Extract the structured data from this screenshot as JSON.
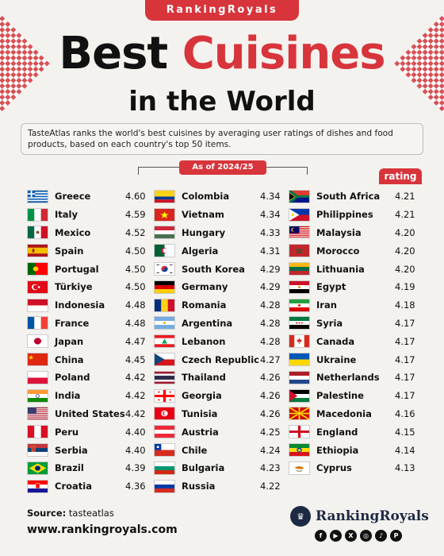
{
  "brand_tab": "RankingRoyals",
  "title": {
    "word1": "Best",
    "word2": "Cuisines",
    "line2": "in the World"
  },
  "description": "TasteAtlas ranks the world's best cuisines by averaging user ratings of dishes and food products, based on each country's top 50 items.",
  "as_of": "As of 2024/25",
  "rating_header": "rating",
  "columns": [
    [
      {
        "country": "Greece",
        "rating": "4.60",
        "flag": "greece"
      },
      {
        "country": "Italy",
        "rating": "4.59",
        "flag": "italy"
      },
      {
        "country": "Mexico",
        "rating": "4.52",
        "flag": "mexico"
      },
      {
        "country": "Spain",
        "rating": "4.50",
        "flag": "spain"
      },
      {
        "country": "Portugal",
        "rating": "4.50",
        "flag": "portugal"
      },
      {
        "country": "Türkiye",
        "rating": "4.50",
        "flag": "turkey"
      },
      {
        "country": "Indonesia",
        "rating": "4.48",
        "flag": "indonesia"
      },
      {
        "country": "France",
        "rating": "4.48",
        "flag": "france"
      },
      {
        "country": "Japan",
        "rating": "4.47",
        "flag": "japan"
      },
      {
        "country": "China",
        "rating": "4.45",
        "flag": "china"
      },
      {
        "country": "Poland",
        "rating": "4.42",
        "flag": "poland"
      },
      {
        "country": "India",
        "rating": "4.42",
        "flag": "india"
      },
      {
        "country": "United States",
        "rating": "4.42",
        "flag": "usa"
      },
      {
        "country": "Peru",
        "rating": "4.40",
        "flag": "peru"
      },
      {
        "country": "Serbia",
        "rating": "4.40",
        "flag": "serbia"
      },
      {
        "country": "Brazil",
        "rating": "4.39",
        "flag": "brazil"
      },
      {
        "country": "Croatia",
        "rating": "4.36",
        "flag": "croatia"
      }
    ],
    [
      {
        "country": "Colombia",
        "rating": "4.34",
        "flag": "colombia"
      },
      {
        "country": "Vietnam",
        "rating": "4.34",
        "flag": "vietnam"
      },
      {
        "country": "Hungary",
        "rating": "4.33",
        "flag": "hungary"
      },
      {
        "country": "Algeria",
        "rating": "4.31",
        "flag": "algeria"
      },
      {
        "country": "South Korea",
        "rating": "4.29",
        "flag": "korea"
      },
      {
        "country": "Germany",
        "rating": "4.29",
        "flag": "germany"
      },
      {
        "country": "Romania",
        "rating": "4.28",
        "flag": "romania"
      },
      {
        "country": "Argentina",
        "rating": "4.28",
        "flag": "argentina"
      },
      {
        "country": "Lebanon",
        "rating": "4.28",
        "flag": "lebanon"
      },
      {
        "country": "Czech Republic",
        "rating": "4.27",
        "flag": "czech"
      },
      {
        "country": "Thailand",
        "rating": "4.26",
        "flag": "thailand"
      },
      {
        "country": "Georgia",
        "rating": "4.26",
        "flag": "georgia"
      },
      {
        "country": "Tunisia",
        "rating": "4.26",
        "flag": "tunisia"
      },
      {
        "country": "Austria",
        "rating": "4.25",
        "flag": "austria"
      },
      {
        "country": "Chile",
        "rating": "4.24",
        "flag": "chile"
      },
      {
        "country": "Bulgaria",
        "rating": "4.23",
        "flag": "bulgaria"
      },
      {
        "country": "Russia",
        "rating": "4.22",
        "flag": "russia"
      }
    ],
    [
      {
        "country": "South Africa",
        "rating": "4.21",
        "flag": "southafrica"
      },
      {
        "country": "Philippines",
        "rating": "4.21",
        "flag": "philippines"
      },
      {
        "country": "Malaysia",
        "rating": "4.20",
        "flag": "malaysia"
      },
      {
        "country": "Morocco",
        "rating": "4.20",
        "flag": "morocco"
      },
      {
        "country": "Lithuania",
        "rating": "4.20",
        "flag": "lithuania"
      },
      {
        "country": "Egypt",
        "rating": "4.19",
        "flag": "egypt"
      },
      {
        "country": "Iran",
        "rating": "4.18",
        "flag": "iran"
      },
      {
        "country": "Syria",
        "rating": "4.17",
        "flag": "syria"
      },
      {
        "country": "Canada",
        "rating": "4.17",
        "flag": "canada"
      },
      {
        "country": "Ukraine",
        "rating": "4.17",
        "flag": "ukraine"
      },
      {
        "country": "Netherlands",
        "rating": "4.17",
        "flag": "netherlands"
      },
      {
        "country": "Palestine",
        "rating": "4.17",
        "flag": "palestine"
      },
      {
        "country": "Macedonia",
        "rating": "4.16",
        "flag": "macedonia"
      },
      {
        "country": "England",
        "rating": "4.15",
        "flag": "england"
      },
      {
        "country": "Ethiopia",
        "rating": "4.14",
        "flag": "ethiopia"
      },
      {
        "country": "Cyprus",
        "rating": "4.13",
        "flag": "cyprus"
      }
    ]
  ],
  "footer": {
    "source_label": "Source:",
    "source_value": "tasteatlas",
    "website": "www.rankingroyals.com",
    "logo_text": "RankingRoyals",
    "logo_icon": "crown-globe-icon",
    "socials": [
      "facebook-icon",
      "youtube-icon",
      "x-icon",
      "instagram-icon",
      "tiktok-icon",
      "pinterest-icon"
    ]
  }
}
